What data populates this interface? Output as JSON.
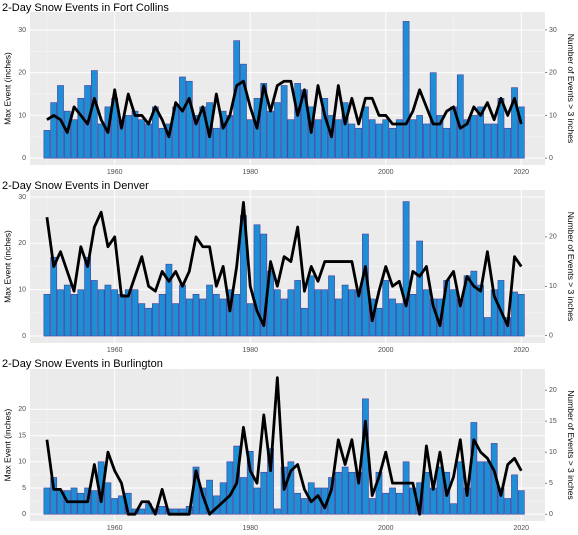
{
  "chart_data": [
    {
      "type": "bar_line",
      "title": "2-Day Snow Events in Fort Collins",
      "y_label": "Max Event (inches)",
      "y2_label": "Number of Events > 3 inches",
      "x": [
        1950,
        1951,
        1952,
        1953,
        1954,
        1955,
        1956,
        1957,
        1958,
        1959,
        1960,
        1961,
        1962,
        1963,
        1964,
        1965,
        1966,
        1967,
        1968,
        1969,
        1970,
        1971,
        1972,
        1973,
        1974,
        1975,
        1976,
        1977,
        1978,
        1979,
        1980,
        1981,
        1982,
        1983,
        1984,
        1985,
        1986,
        1987,
        1988,
        1989,
        1990,
        1991,
        1992,
        1993,
        1994,
        1995,
        1996,
        1997,
        1998,
        1999,
        2000,
        2001,
        2002,
        2003,
        2004,
        2005,
        2006,
        2007,
        2008,
        2009,
        2010,
        2011,
        2012,
        2013,
        2014,
        2015,
        2016,
        2017,
        2018,
        2019,
        2020
      ],
      "xlim": [
        1947.5,
        2023.5
      ],
      "xticks": [
        1960,
        1980,
        2000,
        2020
      ],
      "ylim": [
        -1.6,
        34.2
      ],
      "yticks": [
        0,
        10,
        20,
        30
      ],
      "y2lim": [
        -1.6,
        34.2
      ],
      "y2ticks": [
        0,
        10,
        20,
        30
      ],
      "grid": true,
      "series": [
        {
          "name": "Max Event (inches)",
          "kind": "bar",
          "color": "#1e8fd5",
          "edge": "#4b3a9a",
          "values": [
            6.5,
            13,
            17,
            11,
            9,
            14,
            17,
            20.5,
            8,
            12,
            14,
            9,
            10,
            11,
            9,
            8,
            12,
            7,
            8,
            12,
            19,
            18,
            10,
            12,
            13,
            7,
            11,
            10,
            27.5,
            22,
            9,
            14,
            17.5,
            11,
            13,
            17,
            9,
            17.5,
            16,
            12,
            9,
            14,
            10,
            9,
            13,
            8,
            7,
            12,
            9,
            8,
            9,
            7,
            9,
            32,
            9,
            10,
            8,
            20,
            10,
            7,
            12,
            19.5,
            9,
            10,
            12,
            8,
            8,
            14,
            7,
            16.5,
            12
          ]
        },
        {
          "name": "Number of Events > 3 inches",
          "kind": "line",
          "axis": "y2",
          "color": "#000000",
          "values": [
            9,
            10,
            9,
            6,
            12,
            10,
            8,
            14,
            9,
            6,
            16,
            7,
            15,
            10,
            10,
            8,
            12,
            9,
            5,
            13,
            11,
            14,
            8,
            12,
            5,
            15,
            7,
            10,
            17,
            18,
            12,
            7,
            17,
            11,
            17,
            18,
            18,
            10,
            16,
            6,
            17,
            10,
            5,
            17,
            8,
            14,
            8,
            14,
            14,
            10,
            10,
            8,
            8,
            8,
            11,
            16,
            12,
            8,
            8,
            11,
            12,
            7,
            8,
            12,
            10,
            13,
            9,
            14,
            10,
            14,
            8
          ]
        }
      ]
    },
    {
      "type": "bar_line",
      "title": "2-Day Snow Events in Denver",
      "y_label": "Max Event (inches)",
      "y2_label": "Number of Events > 3 inches",
      "x": [
        1950,
        1951,
        1952,
        1953,
        1954,
        1955,
        1956,
        1957,
        1958,
        1959,
        1960,
        1961,
        1962,
        1963,
        1964,
        1965,
        1966,
        1967,
        1968,
        1969,
        1970,
        1971,
        1972,
        1973,
        1974,
        1975,
        1976,
        1977,
        1978,
        1979,
        1980,
        1981,
        1982,
        1983,
        1984,
        1985,
        1986,
        1987,
        1988,
        1989,
        1990,
        1991,
        1992,
        1993,
        1994,
        1995,
        1996,
        1997,
        1998,
        1999,
        2000,
        2001,
        2002,
        2003,
        2004,
        2005,
        2006,
        2007,
        2008,
        2009,
        2010,
        2011,
        2012,
        2013,
        2014,
        2015,
        2016,
        2017,
        2018,
        2019,
        2020
      ],
      "xlim": [
        1947.5,
        2023.5
      ],
      "xticks": [
        1960,
        1980,
        2000,
        2020
      ],
      "ylim": [
        -1.5,
        31.5
      ],
      "yticks": [
        0,
        10,
        20,
        30
      ],
      "y2lim": [
        -1.5,
        29.5
      ],
      "y2ticks": [
        0,
        10,
        20
      ],
      "grid": true,
      "series": [
        {
          "name": "Max Event (inches)",
          "kind": "bar",
          "color": "#1e8fd5",
          "edge": "#4b3a9a",
          "values": [
            9,
            17,
            10,
            11,
            9,
            10,
            17,
            12,
            10,
            11,
            10,
            9,
            10,
            10,
            7,
            6,
            7,
            9,
            15.5,
            7,
            11,
            8,
            9,
            8,
            11,
            9,
            8,
            10,
            9,
            26,
            7,
            24,
            22,
            14,
            10,
            8,
            10,
            12,
            6,
            13,
            10,
            10,
            13,
            8,
            11,
            10,
            10,
            22,
            8,
            6,
            12,
            8,
            7,
            29,
            9,
            20.5,
            10,
            8,
            8,
            12,
            10,
            8,
            13,
            14,
            11,
            4,
            10,
            12,
            4,
            9.5,
            9
          ]
        },
        {
          "name": "Number of Events > 3 inches",
          "kind": "line",
          "axis": "y2",
          "color": "#000000",
          "values": [
            24,
            14,
            17,
            13,
            9,
            18,
            14,
            22,
            25,
            18,
            20,
            8,
            8,
            12,
            16,
            10,
            9,
            13,
            11,
            13,
            10,
            13,
            20,
            18,
            18,
            10,
            14,
            5,
            14,
            27,
            10,
            5,
            2,
            15,
            10,
            16,
            15,
            22,
            9,
            14,
            11,
            15,
            15,
            15,
            15,
            15,
            8,
            14,
            3,
            9,
            14,
            10,
            11,
            6,
            13,
            12,
            14,
            6,
            2,
            11,
            13,
            6,
            12,
            10,
            9,
            17,
            8,
            5,
            2,
            16,
            14
          ]
        }
      ]
    },
    {
      "type": "bar_line",
      "title": "2-Day Snow Events in Burlington",
      "y_label": "Max Event (inches)",
      "y2_label": "Number of Events > 3 inches",
      "x": [
        1950,
        1951,
        1952,
        1953,
        1954,
        1955,
        1956,
        1957,
        1958,
        1959,
        1960,
        1961,
        1962,
        1963,
        1964,
        1965,
        1966,
        1967,
        1968,
        1969,
        1970,
        1971,
        1972,
        1973,
        1974,
        1975,
        1976,
        1977,
        1978,
        1979,
        1980,
        1981,
        1982,
        1983,
        1984,
        1985,
        1986,
        1987,
        1988,
        1989,
        1990,
        1991,
        1992,
        1993,
        1994,
        1995,
        1996,
        1997,
        1998,
        1999,
        2000,
        2001,
        2002,
        2003,
        2004,
        2005,
        2006,
        2007,
        2008,
        2009,
        2010,
        2011,
        2012,
        2013,
        2014,
        2015,
        2016,
        2017,
        2018,
        2019,
        2020
      ],
      "xlim": [
        1947.5,
        2023.5
      ],
      "xticks": [
        1960,
        1980,
        2000,
        2020
      ],
      "ylim": [
        -1.3,
        27.7
      ],
      "yticks": [
        0,
        5,
        10,
        15,
        20
      ],
      "y2lim": [
        -1.1,
        23.4
      ],
      "y2ticks": [
        0,
        5,
        10,
        15,
        20
      ],
      "grid": true,
      "series": [
        {
          "name": "Max Event (inches)",
          "kind": "bar",
          "color": "#1e8fd5",
          "edge": "#4b3a9a",
          "values": [
            5,
            7,
            4.5,
            4.5,
            5,
            4,
            5,
            4.5,
            10,
            6,
            3,
            3.5,
            4,
            1,
            1,
            2,
            1,
            1.5,
            1,
            1,
            1,
            1.5,
            9,
            5,
            6.5,
            3.5,
            6,
            10,
            13,
            7,
            12,
            5,
            8,
            12.5,
            1,
            9,
            10,
            4,
            3,
            6,
            5,
            5,
            7,
            8,
            9,
            8,
            8,
            22,
            3,
            8,
            4,
            5,
            4,
            10,
            5,
            6,
            8,
            5,
            9,
            8,
            2,
            10,
            5,
            17.5,
            10,
            10,
            13.5,
            5,
            3,
            7.5,
            4.5
          ]
        },
        {
          "name": "Number of Events > 3 inches",
          "kind": "line",
          "axis": "y2",
          "color": "#000000",
          "values": [
            12,
            4,
            4,
            2,
            2,
            2,
            2,
            8,
            2,
            10,
            7,
            5,
            0,
            0,
            2,
            2,
            0,
            4,
            0,
            0,
            0,
            0,
            7,
            3,
            0,
            1,
            2,
            3,
            5,
            14,
            7,
            5,
            16,
            7,
            22,
            4,
            7,
            8,
            4,
            2,
            3,
            1,
            4,
            12,
            8,
            12,
            5,
            15,
            3,
            6,
            10,
            5,
            5,
            5,
            5,
            0,
            11,
            4,
            10,
            3,
            6,
            12,
            3,
            12,
            10,
            9,
            7,
            3,
            8,
            9,
            7
          ]
        }
      ]
    }
  ]
}
